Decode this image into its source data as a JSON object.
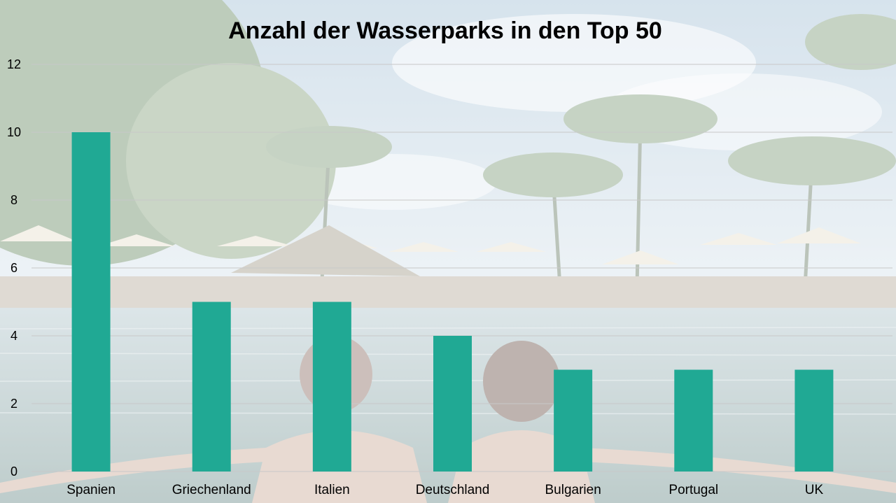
{
  "colors": {
    "bar": "#20a994",
    "grid": "#c8c8c8",
    "text": "#000000"
  },
  "chart_data": {
    "type": "bar",
    "title": "Anzahl der Wasserparks in den Top 50",
    "xlabel": "",
    "ylabel": "",
    "categories": [
      "Spanien",
      "Griechenland",
      "Italien",
      "Deutschland",
      "Bulgarien",
      "Portugal",
      "UK"
    ],
    "values": [
      10,
      5,
      5,
      4,
      3,
      3,
      3
    ],
    "ylim": [
      0,
      12
    ],
    "yticks": [
      "0",
      "2",
      "4",
      "6",
      "8",
      "10",
      "12"
    ],
    "grid": true,
    "legend": "none"
  }
}
